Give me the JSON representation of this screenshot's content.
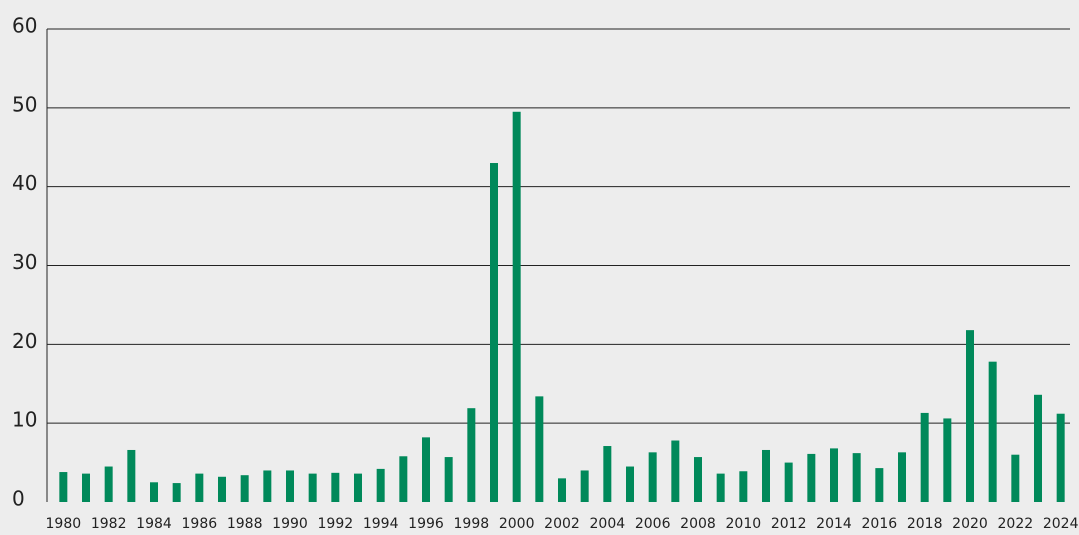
{
  "chart_data": {
    "type": "bar",
    "categories": [
      "1980",
      null,
      "1982",
      null,
      "1984",
      null,
      "1986",
      null,
      "1988",
      null,
      "1990",
      null,
      "1992",
      null,
      "1994",
      null,
      "1996",
      null,
      "1998",
      null,
      "2000",
      null,
      "2002",
      null,
      "2004",
      null,
      "2006",
      null,
      "2008",
      null,
      "2010",
      null,
      "2012",
      null,
      "2014",
      null,
      "2016",
      null,
      "2018",
      null,
      "2020",
      null,
      "2022",
      null,
      "2024"
    ],
    "values": [
      3.8,
      3.6,
      4.5,
      6.6,
      2.5,
      2.4,
      3.6,
      3.2,
      3.4,
      4.0,
      4.0,
      3.6,
      3.7,
      3.6,
      4.2,
      5.8,
      8.2,
      5.7,
      11.9,
      43.0,
      49.5,
      13.4,
      3.0,
      4.0,
      7.1,
      4.5,
      6.3,
      7.8,
      5.7,
      3.6,
      3.9,
      6.6,
      5.0,
      6.1,
      6.8,
      6.2,
      4.3,
      6.3,
      11.3,
      10.6,
      21.8,
      17.8,
      6.0,
      13.6,
      11.2
    ],
    "color": "#00895a",
    "ylim": [
      0,
      60
    ],
    "yticks": [
      0,
      10,
      20,
      30,
      40,
      50,
      60
    ],
    "grid": true
  }
}
